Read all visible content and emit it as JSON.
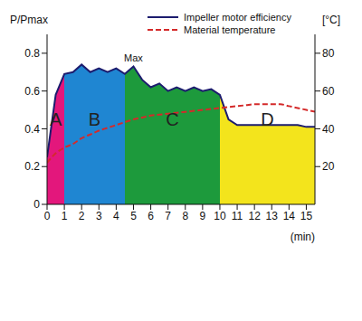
{
  "chart_data": {
    "type": "line",
    "x_label": "(min)",
    "y_label": "P/Pmax",
    "y2_label": "[°C]",
    "x": [
      0,
      0.5,
      1,
      1.5,
      2,
      2.5,
      3,
      3.5,
      4,
      4.5,
      5,
      5.5,
      6,
      6.5,
      7,
      7.5,
      8,
      8.5,
      9,
      9.5,
      10,
      10.5,
      11,
      11.5,
      12,
      12.5,
      13,
      13.5,
      14,
      14.5,
      15,
      15.5
    ],
    "series": [
      {
        "name": "Impeller motor efficiency",
        "color": "#1c1c6e",
        "line_style": "solid",
        "values": [
          0.25,
          0.58,
          0.69,
          0.7,
          0.74,
          0.7,
          0.72,
          0.7,
          0.72,
          0.69,
          0.73,
          0.66,
          0.62,
          0.64,
          0.6,
          0.62,
          0.6,
          0.62,
          0.6,
          0.61,
          0.58,
          0.45,
          0.42,
          0.42,
          0.42,
          0.42,
          0.42,
          0.42,
          0.42,
          0.42,
          0.41,
          0.41
        ]
      },
      {
        "name": "Material temperature",
        "color": "#d42a2a",
        "line_style": "dashed",
        "axis": "y2",
        "values": [
          22,
          27,
          30,
          32,
          35,
          37,
          39,
          40.5,
          42,
          43.5,
          45,
          46,
          47,
          47.5,
          48,
          48.5,
          49,
          49.5,
          50,
          50.5,
          51,
          51.5,
          52,
          52.5,
          53,
          53,
          53,
          53,
          52,
          51,
          50,
          49
        ]
      }
    ],
    "xlim": [
      0,
      15.5
    ],
    "xticks": [
      0,
      1,
      2,
      3,
      4,
      5,
      6,
      7,
      8,
      9,
      10,
      11,
      12,
      13,
      14,
      15
    ],
    "ylim": [
      0,
      0.9
    ],
    "yticks": [
      0,
      0.2,
      0.4,
      0.6,
      0.8
    ],
    "y2lim": [
      0,
      90
    ],
    "y2ticks": [
      20,
      40,
      60,
      80
    ],
    "legend": "upper right",
    "zones": [
      {
        "label": "A",
        "start": 0,
        "end": 1,
        "color": "#e3177c"
      },
      {
        "label": "B",
        "start": 1,
        "end": 4.5,
        "color": "#1f86d2"
      },
      {
        "label": "C",
        "start": 4.5,
        "end": 10,
        "color": "#1d9a3c"
      },
      {
        "label": "D",
        "start": 10,
        "end": 15.5,
        "color": "#f3e41c"
      }
    ],
    "annotations": [
      {
        "text": "Max",
        "x": 5,
        "y": 0.73
      }
    ]
  }
}
